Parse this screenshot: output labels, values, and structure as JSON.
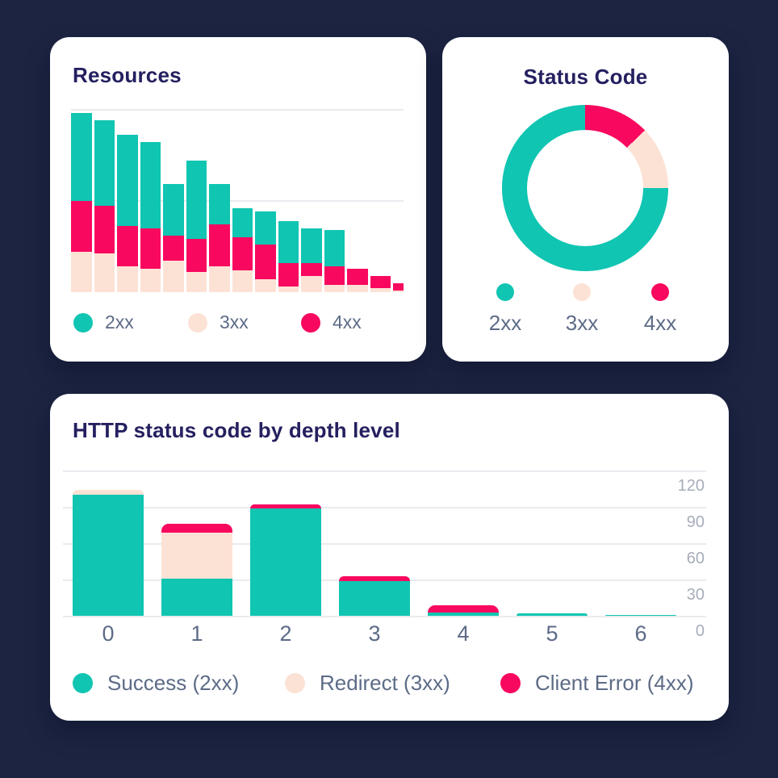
{
  "palette": {
    "teal": "#10C5B2",
    "cream": "#FCE2D5",
    "pink": "#F8085F",
    "navy_bg": "#1C2442",
    "title": "#242060",
    "slate": "#5D6B87",
    "tick": "#A7ADBB",
    "grid": "#E9EBEF",
    "card": "#FFFFFF"
  },
  "resources_card": {
    "title": "Resources",
    "legend": [
      {
        "label": "2xx",
        "color": "teal"
      },
      {
        "label": "3xx",
        "color": "cream"
      },
      {
        "label": "4xx",
        "color": "pink"
      }
    ]
  },
  "status_card": {
    "title": "Status Code",
    "legend": [
      {
        "label": "2xx",
        "color": "teal"
      },
      {
        "label": "3xx",
        "color": "cream"
      },
      {
        "label": "4xx",
        "color": "pink"
      }
    ]
  },
  "depth_card": {
    "title": "HTTP status code by depth level",
    "legend": [
      {
        "label": "Success (2xx)",
        "color": "teal"
      },
      {
        "label": "Redirect (3xx)",
        "color": "cream"
      },
      {
        "label": "Client Error (4xx)",
        "color": "pink"
      }
    ]
  },
  "chart_data": [
    {
      "id": "resources",
      "type": "bar",
      "stacked": true,
      "title": "Resources",
      "ylim": [
        0,
        100
      ],
      "gridline_values": [
        100,
        50
      ],
      "stack_order_bottom_to_top": [
        "3xx",
        "4xx",
        "2xx"
      ],
      "series": [
        {
          "name": "2xx",
          "color": "teal",
          "values": [
            48,
            47,
            50,
            47,
            28,
            43,
            22,
            16,
            18,
            23,
            19,
            20,
            0,
            0,
            0
          ]
        },
        {
          "name": "3xx",
          "color": "cream",
          "values": [
            22,
            21,
            14,
            13,
            17,
            11,
            14,
            12,
            7,
            3,
            9,
            4,
            4,
            2,
            1
          ]
        },
        {
          "name": "4xx",
          "color": "pink",
          "values": [
            28,
            26,
            22,
            22,
            14,
            18,
            23,
            18,
            19,
            13,
            7,
            10,
            9,
            7,
            4
          ]
        }
      ],
      "note": "x categories unlabeled; values estimated from gridlines (top gridline = 100, middle = 50)"
    },
    {
      "id": "status-donut",
      "type": "pie",
      "donut": true,
      "title": "Status Code",
      "slices": [
        {
          "label": "4xx",
          "color": "pink",
          "start_deg": 0,
          "end_deg": 46,
          "percent": 12.8
        },
        {
          "label": "3xx",
          "color": "cream",
          "start_deg": 46,
          "end_deg": 90,
          "percent": 12.2
        },
        {
          "label": "2xx",
          "color": "teal",
          "start_deg": 90,
          "end_deg": 360,
          "percent": 75.0
        }
      ]
    },
    {
      "id": "depth",
      "type": "bar",
      "stacked": true,
      "title": "HTTP status code by depth level",
      "categories": [
        "0",
        "1",
        "2",
        "3",
        "4",
        "5",
        "6"
      ],
      "ylim": [
        0,
        120
      ],
      "yticks": [
        120,
        90,
        60,
        30,
        0
      ],
      "stack_order_bottom_to_top": [
        "Success (2xx)",
        "Redirect (3xx)",
        "Client Error (4xx)"
      ],
      "series": [
        {
          "name": "Success (2xx)",
          "color": "teal",
          "values": [
            100,
            31,
            89,
            29,
            3,
            2,
            1
          ]
        },
        {
          "name": "Redirect (3xx)",
          "color": "cream",
          "values": [
            4,
            38,
            0,
            0,
            0,
            0,
            0
          ]
        },
        {
          "name": "Client Error (4xx)",
          "color": "pink",
          "values": [
            0,
            7,
            3,
            4,
            6,
            0,
            0
          ]
        }
      ]
    }
  ]
}
